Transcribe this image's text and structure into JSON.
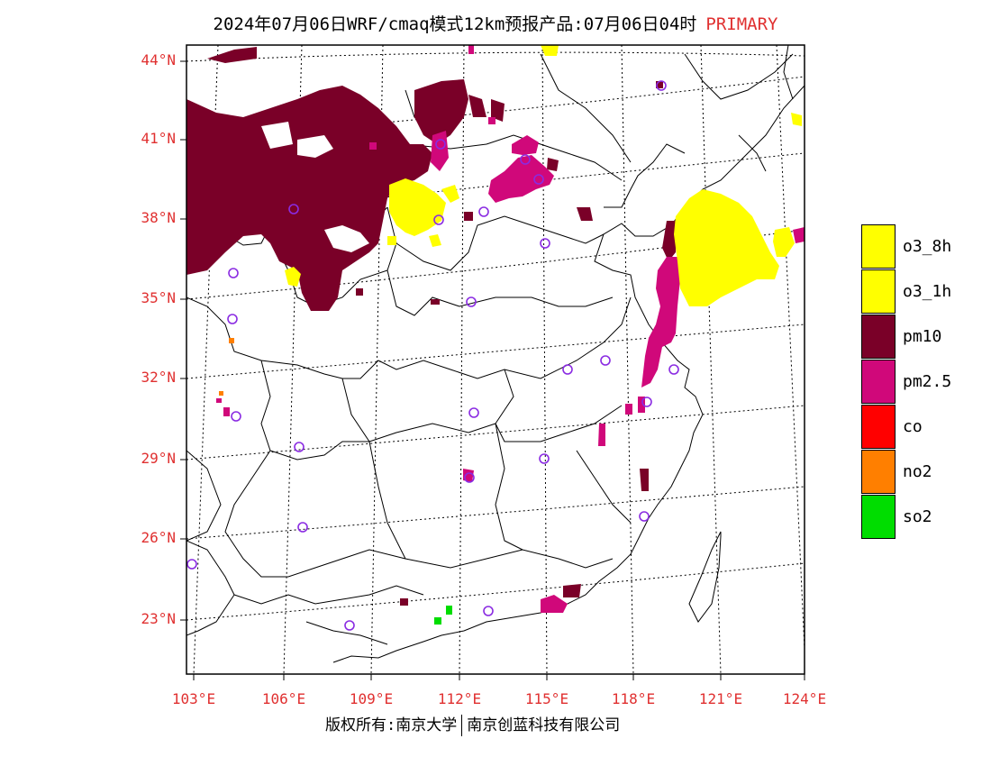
{
  "title": {
    "text": "2024年07月06日WRF/cmaq模式12km预报产品:07月06日04时",
    "tag": "PRIMARY"
  },
  "axes": {
    "lat_labels": [
      "44°N",
      "41°N",
      "38°N",
      "35°N",
      "32°N",
      "29°N",
      "26°N",
      "23°N"
    ],
    "lon_labels": [
      "103°E",
      "106°E",
      "109°E",
      "112°E",
      "115°E",
      "118°E",
      "121°E",
      "124°E"
    ]
  },
  "legend": [
    {
      "label": "o3_8h",
      "color": "#ffff00"
    },
    {
      "label": "o3_1h",
      "color": "#ffff00"
    },
    {
      "label": "pm10",
      "color": "#7a0028"
    },
    {
      "label": "pm2.5",
      "color": "#d0087a"
    },
    {
      "label": "co",
      "color": "#ff0000"
    },
    {
      "label": "no2",
      "color": "#ff7f00"
    },
    {
      "label": "so2",
      "color": "#00dd00"
    }
  ],
  "footer": {
    "left": "版权所有:南京大学",
    "right": "南京创蓝科技有限公司"
  },
  "colors": {
    "axis_label": "#e03030",
    "city_marker": "#8a2be2"
  }
}
